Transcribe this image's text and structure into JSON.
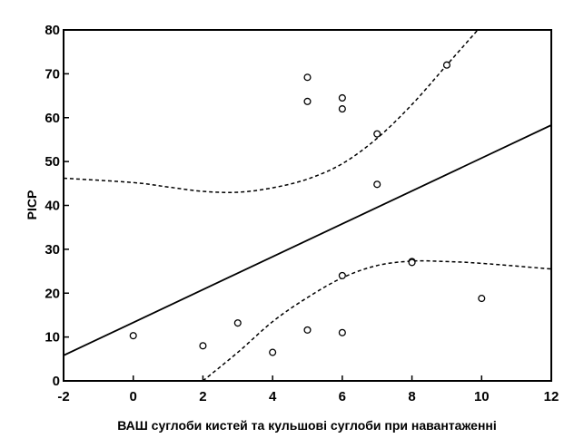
{
  "chart_data": {
    "type": "scatter",
    "title": "",
    "xlabel": "ВАШ суглоби кистей та кульшові суглоби при навантаженні",
    "ylabel": "РІСР",
    "xlim": [
      -2,
      12
    ],
    "ylim": [
      0,
      80
    ],
    "x_ticks": [
      -2,
      0,
      2,
      4,
      6,
      8,
      10,
      12
    ],
    "y_ticks": [
      0,
      10,
      20,
      30,
      40,
      50,
      60,
      70,
      80
    ],
    "grid": false,
    "legend": "none",
    "series": [
      {
        "type": "scatter",
        "marker": "open-circle",
        "points": [
          {
            "x": 0,
            "y": 10.3
          },
          {
            "x": 2,
            "y": 8
          },
          {
            "x": 3,
            "y": 13.2
          },
          {
            "x": 4,
            "y": 6.5
          },
          {
            "x": 5,
            "y": 11.6
          },
          {
            "x": 5,
            "y": 69.2
          },
          {
            "x": 5,
            "y": 63.7
          },
          {
            "x": 6,
            "y": 64.5
          },
          {
            "x": 6,
            "y": 62
          },
          {
            "x": 6,
            "y": 24
          },
          {
            "x": 6,
            "y": 11
          },
          {
            "x": 7,
            "y": 56.3
          },
          {
            "x": 7,
            "y": 44.8
          },
          {
            "x": 8,
            "y": 27.2
          },
          {
            "x": 8,
            "y": 27
          },
          {
            "x": 9,
            "y": 72
          },
          {
            "x": 10,
            "y": 18.8
          }
        ]
      },
      {
        "type": "line",
        "style": "solid",
        "points": [
          [
            -2,
            5.8
          ],
          [
            12,
            58.3
          ]
        ]
      },
      {
        "type": "line",
        "style": "dashed",
        "points": [
          [
            -2,
            46.2
          ],
          [
            0,
            45.2
          ],
          [
            1,
            44.2
          ],
          [
            2,
            43.2
          ],
          [
            3,
            43.0
          ],
          [
            4,
            44.0
          ],
          [
            5,
            46.0
          ],
          [
            6,
            49.5
          ],
          [
            7,
            55.3
          ],
          [
            8,
            63.0
          ],
          [
            9,
            72.0
          ],
          [
            10,
            81.0
          ]
        ]
      },
      {
        "type": "line",
        "style": "dashed",
        "points": [
          [
            2,
            0
          ],
          [
            3,
            6.5
          ],
          [
            4,
            13.5
          ],
          [
            5,
            19.0
          ],
          [
            6,
            23.5
          ],
          [
            7,
            26.3
          ],
          [
            8,
            27.3
          ],
          [
            9,
            27.2
          ],
          [
            10,
            26.8
          ],
          [
            12,
            25.5
          ]
        ]
      }
    ]
  }
}
